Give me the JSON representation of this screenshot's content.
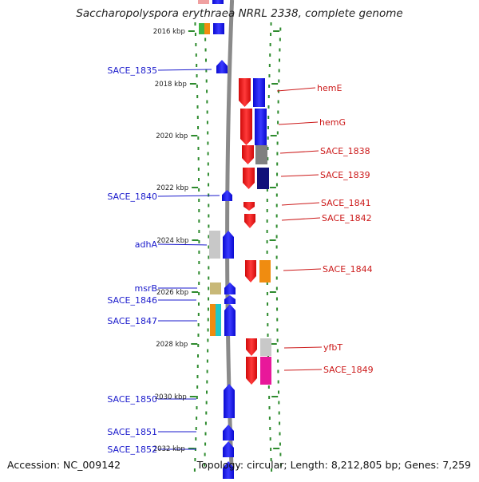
{
  "title": "Saccharopolyspora erythraea NRRL 2338, complete genome",
  "footer": {
    "accession": "Accession: NC_009142",
    "summary": "Topology: circular; Length: 8,212,805 bp; Genes: 7,259"
  },
  "colors": {
    "backbone": "#8a8a8a",
    "ring": "#2e8b2e",
    "plus_strand_label": "#1a1acc",
    "minus_strand_label": "#cc1a1a"
  },
  "ruler": [
    {
      "label": "2016 kbp",
      "kbp": 2016
    },
    {
      "label": "2018 kbp",
      "kbp": 2018
    },
    {
      "label": "2020 kbp",
      "kbp": 2020
    },
    {
      "label": "2022 kbp",
      "kbp": 2022
    },
    {
      "label": "2024 kbp",
      "kbp": 2024
    },
    {
      "label": "2026 kbp",
      "kbp": 2026
    },
    {
      "label": "2028 kbp",
      "kbp": 2028
    },
    {
      "label": "2030 kbp",
      "kbp": 2030
    },
    {
      "label": "2032 kbp",
      "kbp": 2032
    }
  ],
  "left_genes": [
    {
      "label": "SACE_1835",
      "color": "#1010ee"
    },
    {
      "label": "SACE_1840",
      "color": "#1010ee"
    },
    {
      "label": "adhA",
      "color": "#1010ee"
    },
    {
      "label": "msrB",
      "color": "#1010ee"
    },
    {
      "label": "SACE_1846",
      "color": "#1010ee"
    },
    {
      "label": "SACE_1847",
      "color": "#1010ee"
    },
    {
      "label": "SACE_1850",
      "color": "#1010ee"
    },
    {
      "label": "SACE_1851",
      "color": "#1010ee"
    },
    {
      "label": "SACE_1852",
      "color": "#1010ee"
    }
  ],
  "right_genes": [
    {
      "label": "hemE",
      "color": "#ee1010"
    },
    {
      "label": "hemG",
      "color": "#ee1010"
    },
    {
      "label": "SACE_1838",
      "color": "#ee1010"
    },
    {
      "label": "SACE_1839",
      "color": "#ee1010"
    },
    {
      "label": "SACE_1841",
      "color": "#ee1010"
    },
    {
      "label": "SACE_1842",
      "color": "#ee1010"
    },
    {
      "label": "SACE_1844",
      "color": "#ee1010"
    },
    {
      "label": "yfbT",
      "color": "#ee1010"
    },
    {
      "label": "SACE_1849",
      "color": "#ee1010"
    }
  ],
  "feature_colors": {
    "gray": "#808080",
    "navy": "#10107a",
    "lightgray": "#c8c8c8",
    "orange": "#f08c10",
    "cyan": "#20c8c8",
    "olive": "#c8b878",
    "pink": "#e8189a",
    "green": "#40b840"
  }
}
